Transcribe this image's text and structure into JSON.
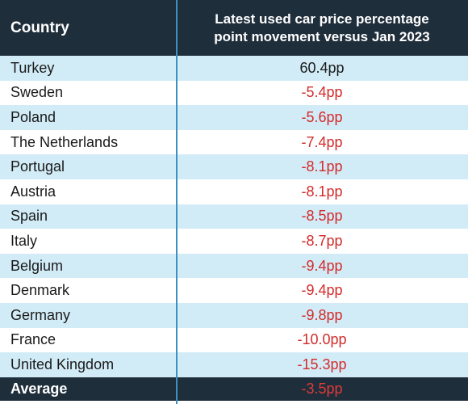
{
  "header": {
    "country_label": "Country",
    "value_label_line1": "Latest used car price percentage",
    "value_label_line2": "point movement versus Jan 2023"
  },
  "rows": [
    {
      "country": "Turkey",
      "value": "60.4pp",
      "positive": true
    },
    {
      "country": "Sweden",
      "value": "-5.4pp",
      "positive": false
    },
    {
      "country": "Poland",
      "value": "-5.6pp",
      "positive": false
    },
    {
      "country": "The Netherlands",
      "value": "-7.4pp",
      "positive": false
    },
    {
      "country": "Portugal",
      "value": "-8.1pp",
      "positive": false
    },
    {
      "country": "Austria",
      "value": "-8.1pp",
      "positive": false
    },
    {
      "country": "Spain",
      "value": "-8.5pp",
      "positive": false
    },
    {
      "country": "Italy",
      "value": "-8.7pp",
      "positive": false
    },
    {
      "country": "Belgium",
      "value": "-9.4pp",
      "positive": false
    },
    {
      "country": "Denmark",
      "value": "-9.4pp",
      "positive": false
    },
    {
      "country": "Germany",
      "value": "-9.8pp",
      "positive": false
    },
    {
      "country": "France",
      "value": "-10.0pp",
      "positive": false
    },
    {
      "country": "United Kingdom",
      "value": "-15.3pp",
      "positive": false
    }
  ],
  "footer": {
    "label": "Average",
    "value": "-3.5pp"
  },
  "colors": {
    "header_bg": "#1f2e3b",
    "row_stripe": "#d2ecf7",
    "negative_text": "#d42a2a",
    "divider": "#3d8fc4"
  }
}
